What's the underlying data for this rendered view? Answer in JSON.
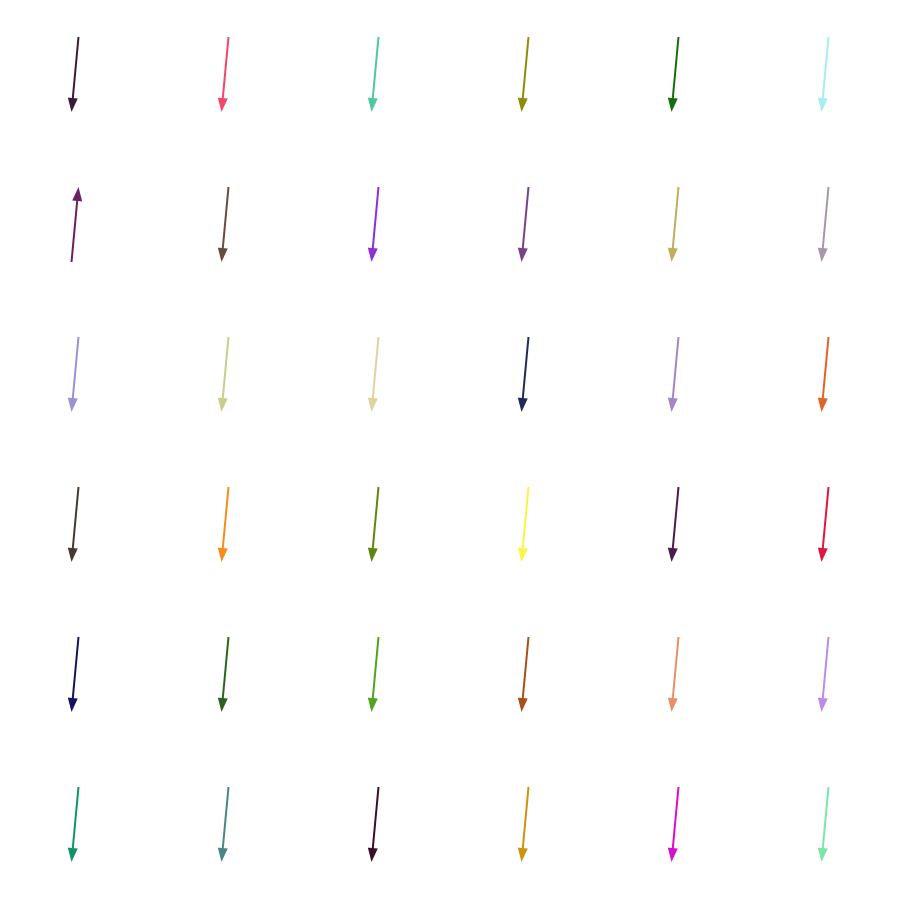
{
  "grid": {
    "rows": 6,
    "cols": 6,
    "arrows": [
      {
        "color": "#3d1a3a",
        "direction": "down"
      },
      {
        "color": "#f2476a",
        "direction": "down"
      },
      {
        "color": "#4dc9a0",
        "direction": "down"
      },
      {
        "color": "#8f8c0a",
        "direction": "down"
      },
      {
        "color": "#14700f",
        "direction": "down"
      },
      {
        "color": "#a8ecf4",
        "direction": "down"
      },
      {
        "color": "#6b1f63",
        "direction": "up"
      },
      {
        "color": "#6a4c3d",
        "direction": "down"
      },
      {
        "color": "#8e2fd6",
        "direction": "down"
      },
      {
        "color": "#7a4188",
        "direction": "down"
      },
      {
        "color": "#c2ad5f",
        "direction": "down"
      },
      {
        "color": "#a996ac",
        "direction": "down"
      },
      {
        "color": "#9f8fd4",
        "direction": "down"
      },
      {
        "color": "#c9ce8c",
        "direction": "down"
      },
      {
        "color": "#ded3a0",
        "direction": "down"
      },
      {
        "color": "#1f2b52",
        "direction": "down"
      },
      {
        "color": "#a386c6",
        "direction": "down"
      },
      {
        "color": "#e06427",
        "direction": "down"
      },
      {
        "color": "#47392f",
        "direction": "down"
      },
      {
        "color": "#f58d1c",
        "direction": "down"
      },
      {
        "color": "#628510",
        "direction": "down"
      },
      {
        "color": "#faf547",
        "direction": "down"
      },
      {
        "color": "#4c1c48",
        "direction": "down"
      },
      {
        "color": "#dd1840",
        "direction": "down"
      },
      {
        "color": "#16125f",
        "direction": "down"
      },
      {
        "color": "#2c6320",
        "direction": "down"
      },
      {
        "color": "#52a31e",
        "direction": "down"
      },
      {
        "color": "#a6501c",
        "direction": "down"
      },
      {
        "color": "#e6906c",
        "direction": "down"
      },
      {
        "color": "#bc8bec",
        "direction": "down"
      },
      {
        "color": "#0f9465",
        "direction": "down"
      },
      {
        "color": "#4b8781",
        "direction": "down"
      },
      {
        "color": "#3a0f2c",
        "direction": "down"
      },
      {
        "color": "#cd9210",
        "direction": "down"
      },
      {
        "color": "#d411c9",
        "direction": "down"
      },
      {
        "color": "#79e7a6",
        "direction": "down"
      }
    ]
  }
}
